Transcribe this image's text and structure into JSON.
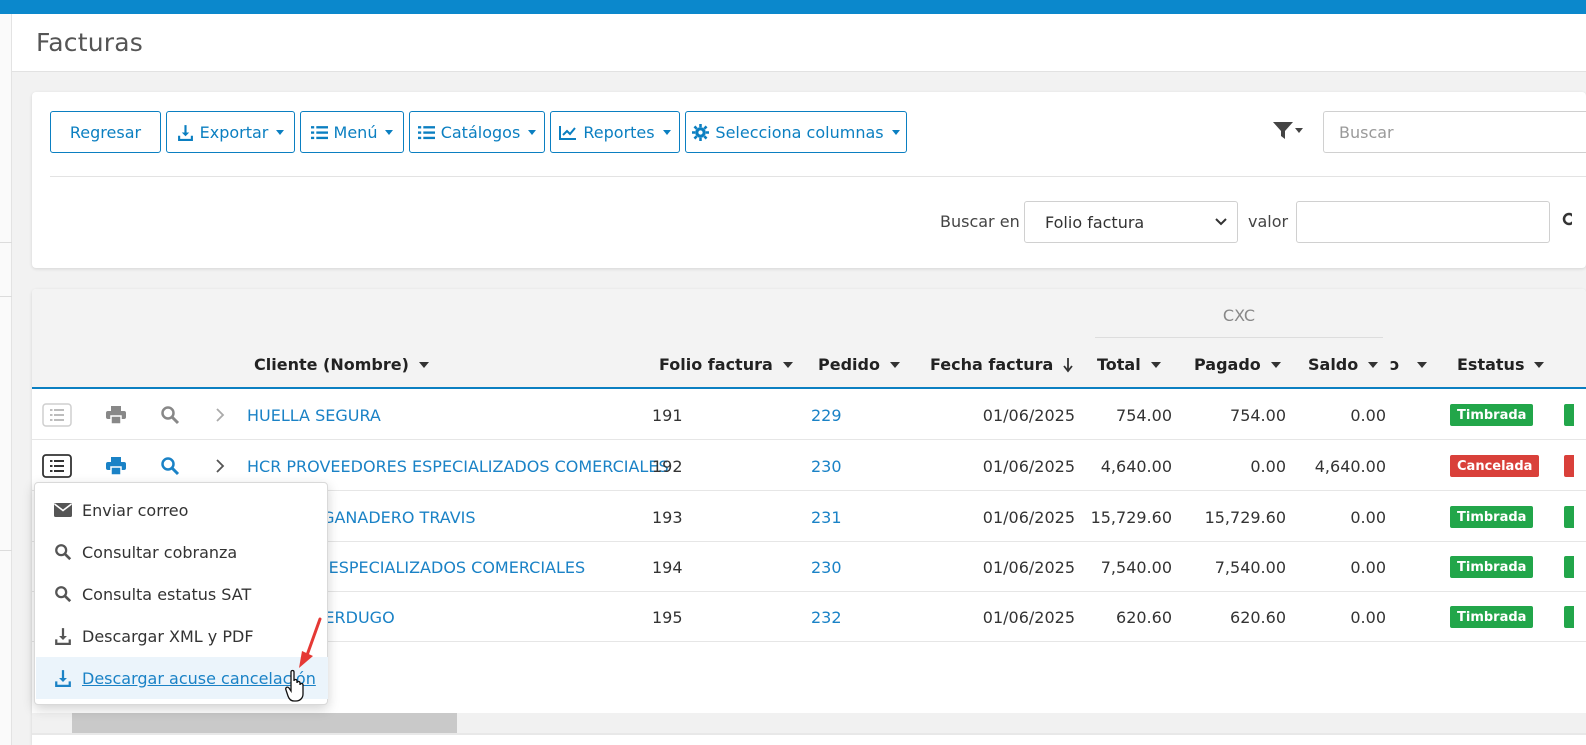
{
  "page": {
    "title": "Facturas"
  },
  "toolbar": {
    "regresar": "Regresar",
    "exportar": "Exportar",
    "menu": "Menú",
    "catalogos": "Catálogos",
    "reportes": "Reportes",
    "columnas": "Selecciona columnas",
    "search_placeholder": "Buscar"
  },
  "filter": {
    "buscar_en_label": "Buscar en",
    "field_selected": "Folio factura",
    "valor_label": "valor",
    "valor_value": ""
  },
  "grid": {
    "group_label": "CXC",
    "headers": {
      "cliente": "Cliente (Nombre)",
      "folio": "Folio factura",
      "pedido": "Pedido",
      "fecha": "Fecha factura",
      "total": "Total",
      "pagado": "Pagado",
      "saldo": "Saldo",
      "partial": "ɔ",
      "estatus": "Estatus"
    },
    "rows": [
      {
        "cliente": "HUELLA SEGURA",
        "folio": "191",
        "pedido": "229",
        "fecha": "01/06/2025",
        "total": "754.00",
        "pagado": "754.00",
        "saldo": "0.00",
        "estatus": "Timbrada"
      },
      {
        "cliente": "HCR PROVEEDORES ESPECIALIZADOS COMERCIALES",
        "folio": "192",
        "pedido": "230",
        "fecha": "01/06/2025",
        "total": "4,640.00",
        "pagado": "0.00",
        "saldo": "4,640.00",
        "estatus": "Cancelada"
      },
      {
        "cliente": "MERCIAL GANADERO TRAVIS",
        "folio": "193",
        "pedido": "231",
        "fecha": "01/06/2025",
        "total": "15,729.60",
        "pagado": "15,729.60",
        "saldo": "0.00",
        "estatus": "Timbrada"
      },
      {
        "cliente": "EEDORES ESPECIALIZADOS COMERCIALES",
        "folio": "194",
        "pedido": "230",
        "fecha": "01/06/2025",
        "total": "7,540.00",
        "pagado": "7,540.00",
        "saldo": "0.00",
        "estatus": "Timbrada"
      },
      {
        "cliente": "SALVAN VERDUGO",
        "folio": "195",
        "pedido": "232",
        "fecha": "01/06/2025",
        "total": "620.60",
        "pagado": "620.60",
        "saldo": "0.00",
        "estatus": "Timbrada"
      }
    ]
  },
  "context_menu": {
    "items": [
      {
        "label": "Enviar correo",
        "icon": "envelope-icon"
      },
      {
        "label": "Consultar cobranza",
        "icon": "search-icon"
      },
      {
        "label": "Consulta estatus SAT",
        "icon": "search-icon"
      },
      {
        "label": "Descargar XML y PDF",
        "icon": "download-icon"
      },
      {
        "label": "Descargar acuse cancelación",
        "icon": "download-icon",
        "highlighted": true
      }
    ]
  },
  "colors": {
    "topbar": "#0b88cc",
    "accent": "#0b7fc1",
    "link": "#1a82c6",
    "timbrada": "#22a64a",
    "cancelada": "#d9403a",
    "annotation_arrow": "#e53935"
  }
}
